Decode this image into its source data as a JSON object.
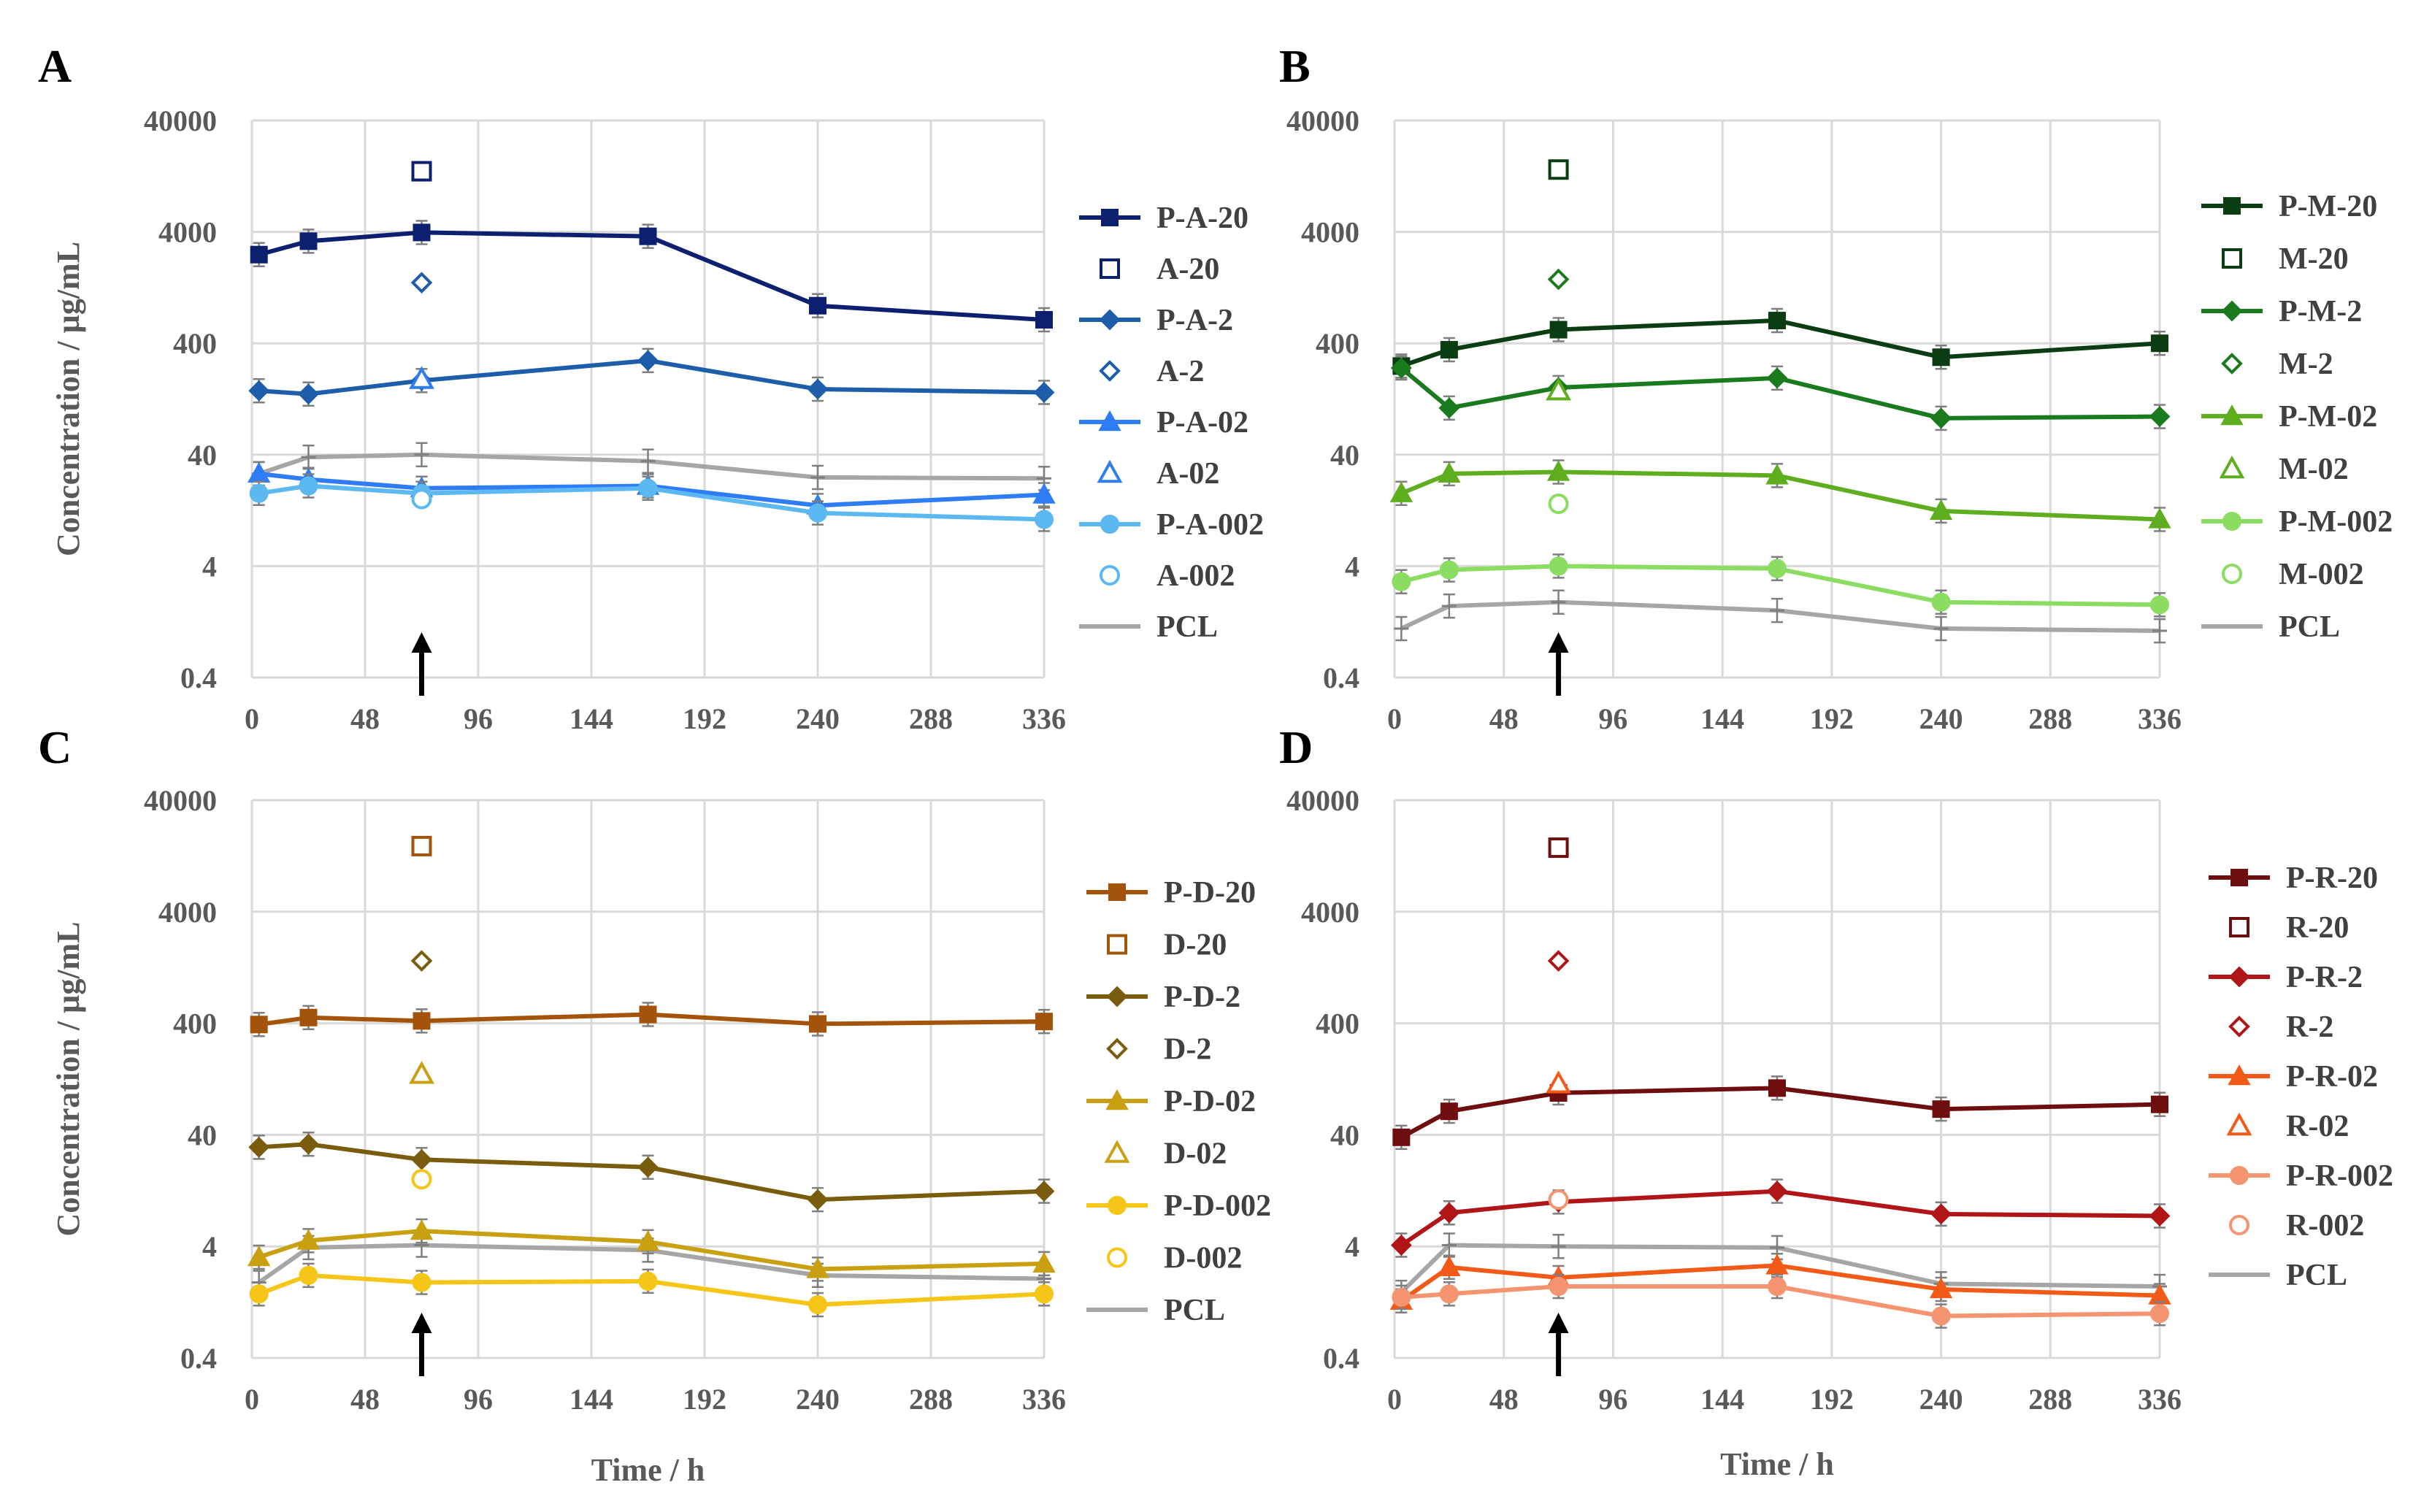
{
  "figure": {
    "ylabel": "Concentration / µg/mL",
    "xlabel": "Time / h",
    "x_ticks": [
      0,
      48,
      96,
      144,
      192,
      240,
      288,
      336
    ],
    "y_ticks": [
      0.4,
      4,
      40,
      400,
      4000,
      40000
    ]
  },
  "chart_data": [
    {
      "panel": "A",
      "type": "line",
      "x": [
        3,
        24,
        72,
        168,
        240,
        336
      ],
      "xlim": [
        0,
        336
      ],
      "ylim": [
        0.4,
        40000
      ],
      "yscale": "log",
      "grid": true,
      "legend": "right",
      "arrow_at_x": 72,
      "series": [
        {
          "name": "P-A-20",
          "color": "#0D1F6F",
          "marker": "square",
          "values": [
            2500,
            3300,
            3950,
            3650,
            870,
            650
          ]
        },
        {
          "name": "A-20",
          "color": "#0D1F6F",
          "marker": "square-open",
          "point": [
            72,
            14000
          ]
        },
        {
          "name": "P-A-2",
          "color": "#1D5DAA",
          "marker": "diamond",
          "values": [
            150,
            140,
            185,
            280,
            155,
            145
          ]
        },
        {
          "name": "A-2",
          "color": "#1D5DAA",
          "marker": "diamond-open",
          "point": [
            72,
            1400
          ]
        },
        {
          "name": "P-A-02",
          "color": "#2E7CF6",
          "marker": "triangle",
          "values": [
            27,
            24,
            20,
            21,
            14,
            17.5
          ]
        },
        {
          "name": "A-02",
          "color": "#2E7CF6",
          "marker": "triangle-open",
          "point": [
            72,
            190
          ]
        },
        {
          "name": "P-A-002",
          "color": "#5BB8F0",
          "marker": "circle",
          "values": [
            18,
            21,
            18,
            20,
            12,
            10.5
          ]
        },
        {
          "name": "A-002",
          "color": "#5BB8F0",
          "marker": "circle-open",
          "point": [
            72,
            16
          ]
        },
        {
          "name": "PCL",
          "color": "#A6A6A6",
          "marker": "dash",
          "values": [
            27,
            38,
            40,
            35,
            25,
            24.5
          ]
        }
      ]
    },
    {
      "panel": "B",
      "type": "line",
      "x": [
        3,
        24,
        72,
        168,
        240,
        336
      ],
      "xlim": [
        0,
        336
      ],
      "ylim": [
        0.4,
        40000
      ],
      "yscale": "log",
      "grid": true,
      "legend": "right",
      "arrow_at_x": 72,
      "series": [
        {
          "name": "P-M-20",
          "color": "#0B3D12",
          "marker": "square",
          "values": [
            250,
            350,
            530,
            640,
            300,
            400
          ]
        },
        {
          "name": "M-20",
          "color": "#0B3D12",
          "marker": "square-open",
          "point": [
            72,
            14500
          ]
        },
        {
          "name": "P-M-2",
          "color": "#197A1E",
          "marker": "diamond",
          "values": [
            240,
            105,
            160,
            195,
            85,
            88
          ]
        },
        {
          "name": "M-2",
          "color": "#197A1E",
          "marker": "diamond-open",
          "point": [
            72,
            1500
          ]
        },
        {
          "name": "P-M-02",
          "color": "#5FAE1F",
          "marker": "triangle",
          "values": [
            18,
            27,
            28,
            26,
            12.5,
            10.5
          ]
        },
        {
          "name": "M-02",
          "color": "#5FAE1F",
          "marker": "triangle-open",
          "point": [
            72,
            150
          ]
        },
        {
          "name": "P-M-002",
          "color": "#8BDD62",
          "marker": "circle",
          "values": [
            2.9,
            3.7,
            4,
            3.8,
            1.9,
            1.8
          ]
        },
        {
          "name": "M-002",
          "color": "#8BDD62",
          "marker": "circle-open",
          "point": [
            72,
            14.5
          ]
        },
        {
          "name": "PCL",
          "color": "#A6A6A6",
          "marker": "dash",
          "values": [
            1.1,
            1.75,
            1.9,
            1.6,
            1.1,
            1.05
          ]
        }
      ]
    },
    {
      "panel": "C",
      "type": "line",
      "x": [
        3,
        24,
        72,
        168,
        240,
        336
      ],
      "xlim": [
        0,
        336
      ],
      "ylim": [
        0.4,
        40000
      ],
      "yscale": "log",
      "grid": true,
      "legend": "right",
      "arrow_at_x": 72,
      "series": [
        {
          "name": "P-D-20",
          "color": "#A3540A",
          "marker": "square",
          "values": [
            390,
            450,
            420,
            480,
            395,
            415
          ]
        },
        {
          "name": "D-20",
          "color": "#A3540A",
          "marker": "square-open",
          "point": [
            72,
            15500
          ]
        },
        {
          "name": "P-D-2",
          "color": "#7A5C0F",
          "marker": "diamond",
          "values": [
            31,
            33,
            24,
            20.5,
            10.5,
            12.5
          ]
        },
        {
          "name": "D-2",
          "color": "#7A5C0F",
          "marker": "diamond-open",
          "point": [
            72,
            1450
          ]
        },
        {
          "name": "P-D-02",
          "color": "#C9A012",
          "marker": "triangle",
          "values": [
            3.2,
            4.5,
            5.5,
            4.4,
            2.5,
            2.8
          ]
        },
        {
          "name": "D-02",
          "color": "#C9A012",
          "marker": "triangle-open",
          "point": [
            72,
            140
          ]
        },
        {
          "name": "P-D-002",
          "color": "#F5C518",
          "marker": "circle",
          "values": [
            1.5,
            2.2,
            1.9,
            1.95,
            1.2,
            1.5
          ]
        },
        {
          "name": "D-002",
          "color": "#F5C518",
          "marker": "circle-open",
          "point": [
            72,
            16
          ]
        },
        {
          "name": "PCL",
          "color": "#A6A6A6",
          "marker": "dash",
          "values": [
            1.9,
            3.9,
            4.1,
            3.7,
            2.2,
            2.05
          ]
        }
      ]
    },
    {
      "panel": "D",
      "type": "line",
      "x": [
        3,
        24,
        72,
        168,
        240,
        336
      ],
      "xlim": [
        0,
        336
      ],
      "ylim": [
        0.4,
        40000
      ],
      "yscale": "log",
      "grid": true,
      "legend": "right",
      "arrow_at_x": 72,
      "series": [
        {
          "name": "P-R-20",
          "color": "#6E0E0E",
          "marker": "square",
          "values": [
            38,
            65,
            95,
            105,
            68,
            75
          ]
        },
        {
          "name": "R-20",
          "color": "#6E0E0E",
          "marker": "square-open",
          "point": [
            72,
            15000
          ]
        },
        {
          "name": "P-R-2",
          "color": "#B01518",
          "marker": "diamond",
          "values": [
            4.1,
            8,
            10,
            12.5,
            7.8,
            7.5
          ]
        },
        {
          "name": "R-2",
          "color": "#B01518",
          "marker": "diamond-open",
          "point": [
            72,
            1450
          ]
        },
        {
          "name": "P-R-02",
          "color": "#F45A17",
          "marker": "triangle",
          "values": [
            1.3,
            2.6,
            2.1,
            2.7,
            1.65,
            1.45
          ]
        },
        {
          "name": "R-02",
          "color": "#F45A17",
          "marker": "triangle-open",
          "point": [
            72,
            115
          ]
        },
        {
          "name": "P-R-002",
          "color": "#F49470",
          "marker": "circle",
          "values": [
            1.4,
            1.5,
            1.75,
            1.75,
            0.95,
            1.0
          ]
        },
        {
          "name": "R-002",
          "color": "#F49470",
          "marker": "circle-open",
          "point": [
            72,
            10.5
          ]
        },
        {
          "name": "PCL",
          "color": "#A6A6A6",
          "marker": "dash",
          "values": [
            1.55,
            4.1,
            4.0,
            3.9,
            1.85,
            1.75
          ]
        }
      ]
    }
  ]
}
